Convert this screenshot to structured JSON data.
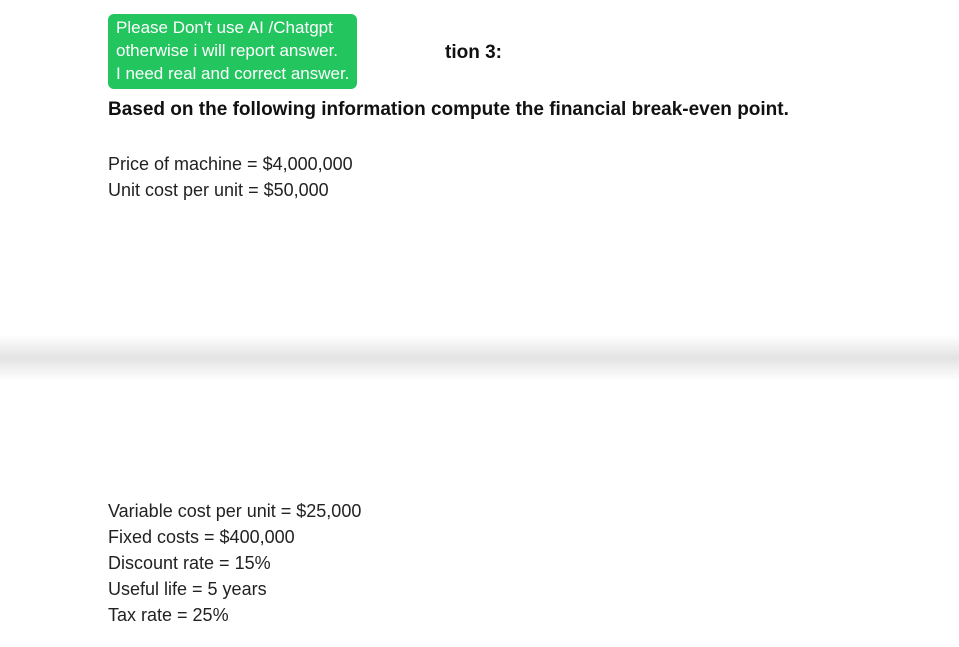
{
  "warning": {
    "line1": "Please Don't use AI /Chatgpt",
    "line2": "otherwise i will report answer.",
    "line3": "I need real and correct answer.",
    "background_color": "#22c55e",
    "text_color": "#ffffff"
  },
  "question_label_partial": "tion 3:",
  "prompt": "Based on the following information compute the financial break-even point.",
  "info_top": {
    "price_of_machine": "Price of machine = $4,000,000",
    "unit_cost_per_unit": "Unit cost per unit = $50,000"
  },
  "info_bottom": {
    "variable_cost_per_unit": "Variable cost per unit = $25,000",
    "fixed_costs": "Fixed costs = $400,000",
    "discount_rate": "Discount rate = 15%",
    "useful_life": "Useful life = 5 years",
    "tax_rate": "Tax rate = 25%"
  },
  "styling": {
    "body_bg": "#ffffff",
    "text_color_main": "#111111",
    "text_color_body": "#222222",
    "font_family": "Arial",
    "prompt_fontsize": 19,
    "prompt_fontweight": "bold",
    "info_fontsize": 18,
    "warning_fontsize": 17,
    "divider_gradient": [
      "#ffffff",
      "#e3e3e3",
      "#ffffff"
    ]
  }
}
